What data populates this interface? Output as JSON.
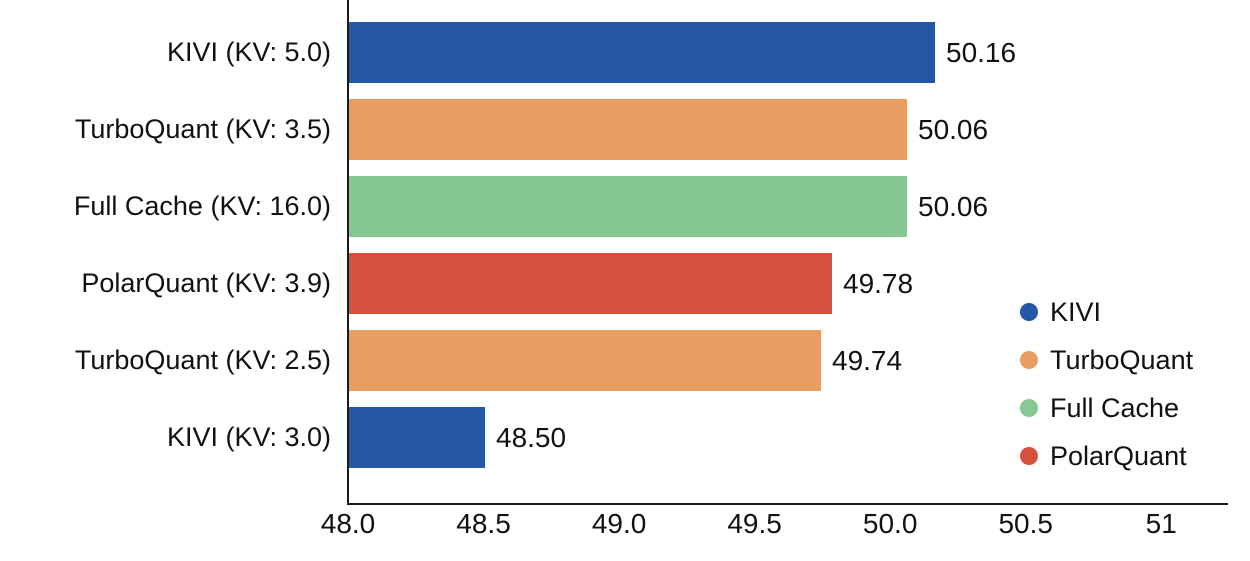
{
  "styles": {
    "background": "#ffffff",
    "text_color": "#111111",
    "axis_color": "#1a1a1a"
  },
  "chart_data": {
    "type": "bar",
    "orientation": "horizontal",
    "title": "",
    "xlabel": "",
    "ylabel": "",
    "xlim": [
      48,
      51.25
    ],
    "grid": false,
    "x_ticks": [
      {
        "value": 48.0,
        "label": "48.0"
      },
      {
        "value": 48.5,
        "label": "48.5"
      },
      {
        "value": 49.0,
        "label": "49.0"
      },
      {
        "value": 49.5,
        "label": "49.5"
      },
      {
        "value": 50.0,
        "label": "50.0"
      },
      {
        "value": 50.5,
        "label": "50.5"
      },
      {
        "value": 51.0,
        "label": "51"
      }
    ],
    "bars": [
      {
        "category": "KIVI (KV: 5.0)",
        "series": "KIVI",
        "value": 50.16,
        "value_label": "50.16"
      },
      {
        "category": "TurboQuant (KV: 3.5)",
        "series": "TurboQuant",
        "value": 50.06,
        "value_label": "50.06"
      },
      {
        "category": "Full Cache (KV: 16.0)",
        "series": "Full Cache",
        "value": 50.06,
        "value_label": "50.06"
      },
      {
        "category": "PolarQuant (KV: 3.9)",
        "series": "PolarQuant",
        "value": 49.78,
        "value_label": "49.78"
      },
      {
        "category": "TurboQuant (KV: 2.5)",
        "series": "TurboQuant",
        "value": 49.74,
        "value_label": "49.74"
      },
      {
        "category": "KIVI (KV: 3.0)",
        "series": "KIVI",
        "value": 48.5,
        "value_label": "48.50"
      }
    ],
    "legend": {
      "position": "right-center",
      "entries": [
        {
          "label": "KIVI",
          "color": "#2457A5"
        },
        {
          "label": "TurboQuant",
          "color": "#EA9D62"
        },
        {
          "label": "Full Cache",
          "color": "#86C794"
        },
        {
          "label": "PolarQuant",
          "color": "#D6503E"
        }
      ]
    }
  }
}
